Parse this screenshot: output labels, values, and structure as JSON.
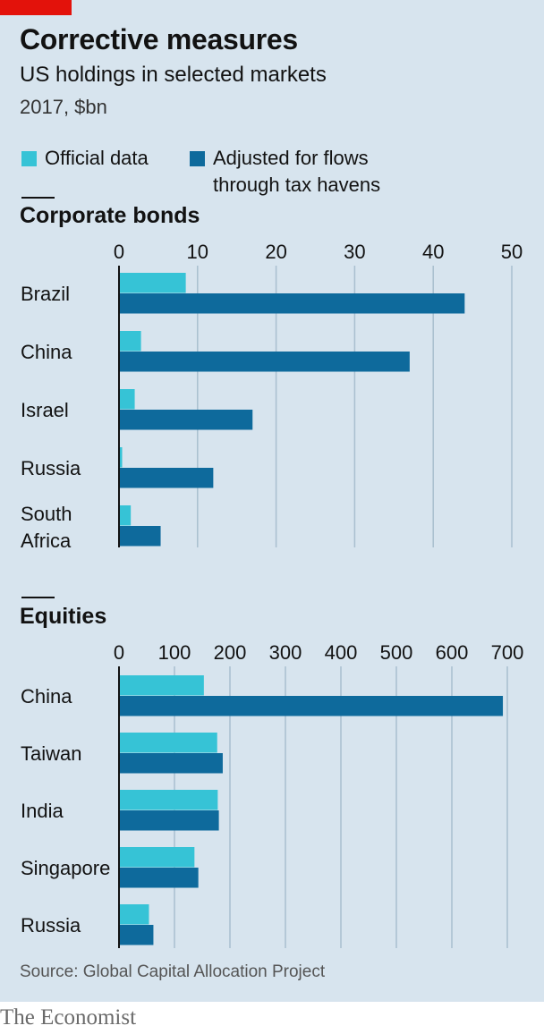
{
  "header": {
    "title": "Corrective measures",
    "subtitle": "US holdings in selected markets",
    "units": "2017, $bn"
  },
  "legend": [
    {
      "label": "Official data",
      "color": "#36c3d6"
    },
    {
      "label_line1": "Adjusted for flows",
      "label_line2": "through tax havens",
      "color": "#0e6a9c"
    }
  ],
  "chart_data": [
    {
      "type": "bar",
      "orientation": "horizontal",
      "title": "Corporate bonds",
      "categories": [
        [
          "Brazil"
        ],
        [
          "China"
        ],
        [
          "Israel"
        ],
        [
          "Russia"
        ],
        [
          "South",
          "Africa"
        ]
      ],
      "series": [
        {
          "name": "Official data",
          "values": [
            8.5,
            2.8,
            2.0,
            0.4,
            1.5
          ]
        },
        {
          "name": "Adjusted for flows through tax havens",
          "values": [
            44,
            37,
            17,
            12,
            5.3
          ]
        }
      ],
      "xlim": [
        0,
        50
      ],
      "ticks": [
        0,
        10,
        20,
        30,
        40,
        50
      ],
      "grid": true
    },
    {
      "type": "bar",
      "orientation": "horizontal",
      "title": "Equities",
      "categories": [
        [
          "China"
        ],
        [
          "Taiwan"
        ],
        [
          "India"
        ],
        [
          "Singapore"
        ],
        [
          "Russia"
        ]
      ],
      "series": [
        {
          "name": "Official data",
          "values": [
            153,
            177,
            178,
            136,
            54
          ]
        },
        {
          "name": "Adjusted for flows through tax havens",
          "values": [
            692,
            187,
            180,
            143,
            62
          ]
        }
      ],
      "xlim": [
        0,
        700
      ],
      "ticks": [
        0,
        100,
        200,
        300,
        400,
        500,
        600,
        700
      ],
      "grid": true
    }
  ],
  "footer": {
    "source": "Source: Global Capital Allocation Project",
    "brand": "The Economist"
  }
}
